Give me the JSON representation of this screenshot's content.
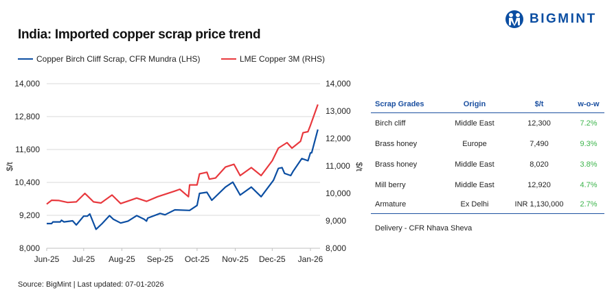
{
  "header": {
    "title": "India: Imported copper scrap price trend",
    "logo_text": "BIGMINT"
  },
  "colors": {
    "lhs_series": "#0b4ea2",
    "rhs_series": "#e8383d",
    "table_header": "#1a4fa0",
    "positive": "#3cb44b",
    "grid": "#d9d9d9"
  },
  "chart_data": {
    "type": "line",
    "title": "India: Imported copper scrap price trend",
    "ylabel": "$/t",
    "y2label": "$/t",
    "ylim": [
      8000,
      14000
    ],
    "y2lim": [
      8000,
      14000
    ],
    "yticks": [
      "8,000",
      "9,200",
      "10,400",
      "11,600",
      "12,800",
      "14,000"
    ],
    "y2ticks": [
      "8,000",
      "9,000",
      "10,000",
      "11,000",
      "12,000",
      "13,000",
      "14,000"
    ],
    "xticks": [
      {
        "label": "Jun-25",
        "date": "2025-06-01"
      },
      {
        "label": "Jul-25",
        "date": "2025-07-01"
      },
      {
        "label": "Aug-25",
        "date": "2025-08-01"
      },
      {
        "label": "Sep-25",
        "date": "2025-09-01"
      },
      {
        "label": "Oct-25",
        "date": "2025-10-01"
      },
      {
        "label": "Nov-25",
        "date": "2025-11-01"
      },
      {
        "label": "Dec-25",
        "date": "2025-12-01"
      },
      {
        "label": "Jan-26",
        "date": "2026-01-01"
      }
    ],
    "grid": true,
    "legend": "top",
    "series": [
      {
        "name": "Copper Birch Cliff Scrap, CFR Mundra (LHS)",
        "axis": "left",
        "points": [
          [
            "2025-06-01",
            8900
          ],
          [
            "2025-06-05",
            8900
          ],
          [
            "2025-06-06",
            8960
          ],
          [
            "2025-06-12",
            8960
          ],
          [
            "2025-06-13",
            9020
          ],
          [
            "2025-06-15",
            8960
          ],
          [
            "2025-06-22",
            9000
          ],
          [
            "2025-06-25",
            8850
          ],
          [
            "2025-07-01",
            9170
          ],
          [
            "2025-07-04",
            9170
          ],
          [
            "2025-07-06",
            9250
          ],
          [
            "2025-07-11",
            8690
          ],
          [
            "2025-07-16",
            8900
          ],
          [
            "2025-07-22",
            9190
          ],
          [
            "2025-07-25",
            9060
          ],
          [
            "2025-07-31",
            8920
          ],
          [
            "2025-08-06",
            8990
          ],
          [
            "2025-08-13",
            9190
          ],
          [
            "2025-08-19",
            9060
          ],
          [
            "2025-08-21",
            8990
          ],
          [
            "2025-08-22",
            9100
          ],
          [
            "2025-09-01",
            9270
          ],
          [
            "2025-09-05",
            9220
          ],
          [
            "2025-09-13",
            9400
          ],
          [
            "2025-09-25",
            9380
          ],
          [
            "2025-10-01",
            9560
          ],
          [
            "2025-10-03",
            10000
          ],
          [
            "2025-10-09",
            10040
          ],
          [
            "2025-10-13",
            9750
          ],
          [
            "2025-10-24",
            10230
          ],
          [
            "2025-10-30",
            10410
          ],
          [
            "2025-11-05",
            9940
          ],
          [
            "2025-11-14",
            10230
          ],
          [
            "2025-11-22",
            9880
          ],
          [
            "2025-12-02",
            10480
          ],
          [
            "2025-12-06",
            10910
          ],
          [
            "2025-12-09",
            10940
          ],
          [
            "2025-12-11",
            10730
          ],
          [
            "2025-12-16",
            10650
          ],
          [
            "2025-12-18",
            10810
          ],
          [
            "2025-12-25",
            11270
          ],
          [
            "2025-12-30",
            11190
          ],
          [
            "2026-01-01",
            11480
          ],
          [
            "2026-01-02",
            11480
          ],
          [
            "2026-01-07",
            12330
          ]
        ]
      },
      {
        "name": "LME Copper 3M (RHS)",
        "axis": "right",
        "points": [
          [
            "2025-06-01",
            9610
          ],
          [
            "2025-06-05",
            9750
          ],
          [
            "2025-06-11",
            9740
          ],
          [
            "2025-06-18",
            9670
          ],
          [
            "2025-06-25",
            9690
          ],
          [
            "2025-07-02",
            10000
          ],
          [
            "2025-07-09",
            9690
          ],
          [
            "2025-07-15",
            9650
          ],
          [
            "2025-07-24",
            9940
          ],
          [
            "2025-07-31",
            9630
          ],
          [
            "2025-08-06",
            9720
          ],
          [
            "2025-08-13",
            9830
          ],
          [
            "2025-08-21",
            9710
          ],
          [
            "2025-08-30",
            9880
          ],
          [
            "2025-09-12",
            10070
          ],
          [
            "2025-09-17",
            10150
          ],
          [
            "2025-09-24",
            9880
          ],
          [
            "2025-09-25",
            10310
          ],
          [
            "2025-10-01",
            10310
          ],
          [
            "2025-10-03",
            10710
          ],
          [
            "2025-10-09",
            10770
          ],
          [
            "2025-10-11",
            10520
          ],
          [
            "2025-10-16",
            10560
          ],
          [
            "2025-10-24",
            10960
          ],
          [
            "2025-10-31",
            11060
          ],
          [
            "2025-11-05",
            10650
          ],
          [
            "2025-11-14",
            10940
          ],
          [
            "2025-11-22",
            10650
          ],
          [
            "2025-12-01",
            11190
          ],
          [
            "2025-12-06",
            11650
          ],
          [
            "2025-12-13",
            11850
          ],
          [
            "2025-12-17",
            11650
          ],
          [
            "2025-12-24",
            11900
          ],
          [
            "2025-12-26",
            12210
          ],
          [
            "2025-12-30",
            12250
          ],
          [
            "2026-01-01",
            12480
          ],
          [
            "2026-01-07",
            13240
          ]
        ]
      }
    ]
  },
  "table": {
    "headers": [
      "Scrap Grades",
      "Origin",
      "$/t",
      "w-o-w"
    ],
    "rows": [
      [
        "Birch cliff",
        "Middle East",
        "12,300",
        "7.2%"
      ],
      [
        "Brass honey",
        "Europe",
        "7,490",
        "9.3%"
      ],
      [
        "Brass honey",
        "Middle East",
        "8,020",
        "3.8%"
      ],
      [
        "Mill berry",
        "Middle East",
        "12,920",
        "4.7%"
      ],
      [
        "Armature",
        "Ex Delhi",
        "INR 1,130,000",
        "2.7%"
      ]
    ],
    "note": "Delivery - CFR Nhava Sheva"
  },
  "footer": {
    "source": "Source: BigMint | Last updated: 07-01-2026"
  }
}
